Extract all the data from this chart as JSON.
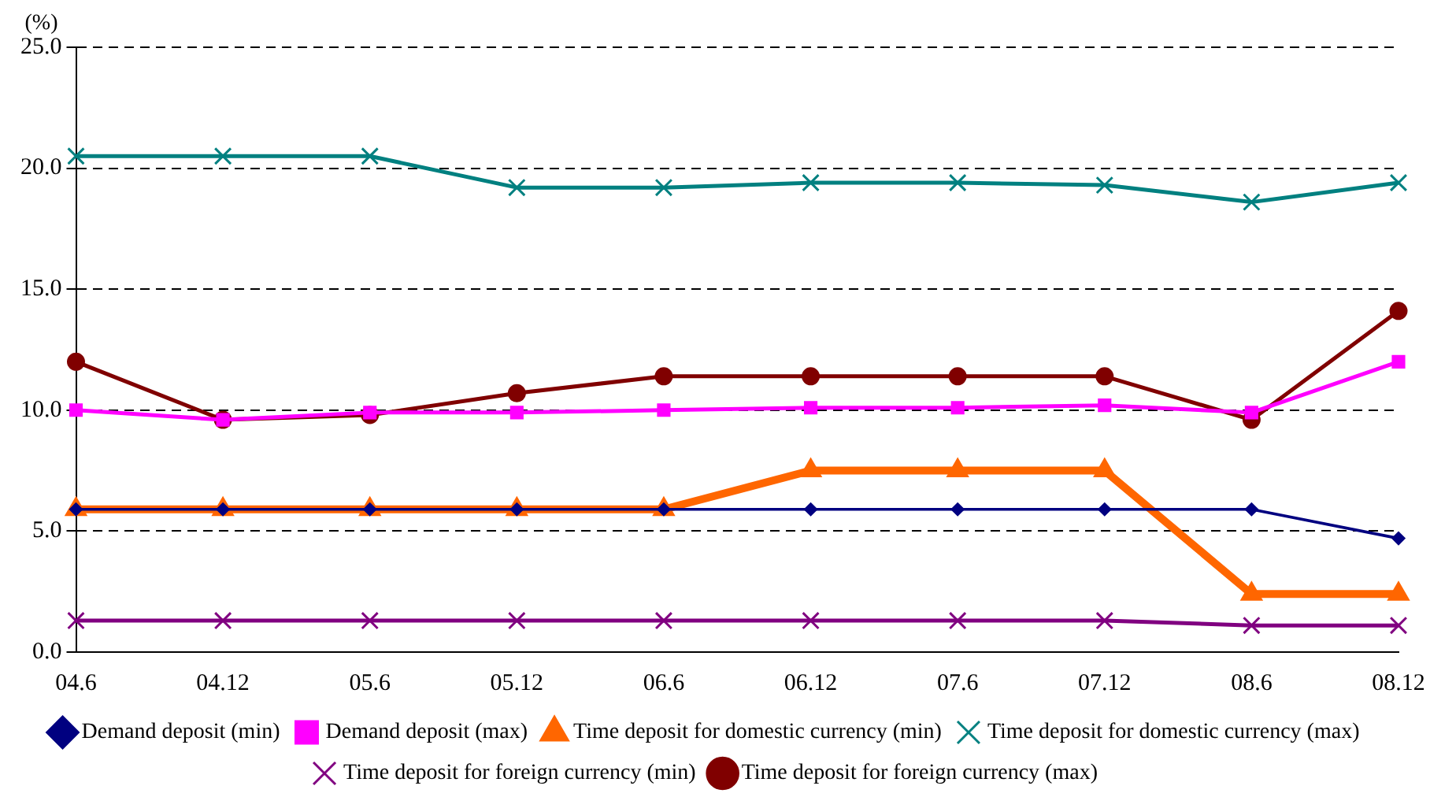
{
  "chart_data": {
    "type": "line",
    "ylabel": "(%)",
    "categories": [
      "04.6",
      "04.12",
      "05.6",
      "05.12",
      "06.6",
      "06.12",
      "07.6",
      "07.12",
      "08.6",
      "08.12"
    ],
    "ylim": [
      0,
      25
    ],
    "yticks": [
      {
        "value": 0,
        "label": "0.0"
      },
      {
        "value": 5,
        "label": "5.0"
      },
      {
        "value": 10,
        "label": "10.0"
      },
      {
        "value": 15,
        "label": "15.0"
      },
      {
        "value": 20,
        "label": "20.0"
      },
      {
        "value": 25,
        "label": "25.0"
      }
    ],
    "grid": "y",
    "legend": "bottom",
    "line_style": "solid",
    "series": [
      {
        "name": "Demand deposit (min)",
        "color": "#000080",
        "marker": "diamond",
        "values": [
          5.9,
          5.9,
          5.9,
          5.9,
          5.9,
          5.9,
          5.9,
          5.9,
          5.9,
          4.7
        ]
      },
      {
        "name": "Demand deposit (max)",
        "color": "#ff00ff",
        "marker": "square",
        "values": [
          10.0,
          9.6,
          9.9,
          9.9,
          10.0,
          10.1,
          10.1,
          10.2,
          9.9,
          12.0
        ]
      },
      {
        "name": "Time deposit for domestic currency (min)",
        "color": "#ff6600",
        "marker": "triangle",
        "values": [
          5.9,
          5.9,
          5.9,
          5.9,
          5.9,
          7.5,
          7.5,
          7.5,
          2.4,
          2.4
        ]
      },
      {
        "name": "Time deposit for domestic currency (max)",
        "color": "#008080",
        "marker": "cross",
        "values": [
          20.5,
          20.5,
          20.5,
          19.2,
          19.2,
          19.4,
          19.4,
          19.3,
          18.6,
          19.4
        ]
      },
      {
        "name": "Time deposit for foreign currency (min)",
        "color": "#800080",
        "marker": "cross",
        "values": [
          1.3,
          1.3,
          1.3,
          1.3,
          1.3,
          1.3,
          1.3,
          1.3,
          1.1,
          1.1
        ]
      },
      {
        "name": "Time deposit for foreign currency (max)",
        "color": "#800000",
        "marker": "circle",
        "values": [
          12.0,
          9.6,
          9.8,
          10.7,
          11.4,
          11.4,
          11.4,
          11.4,
          9.6,
          14.1
        ]
      }
    ]
  }
}
